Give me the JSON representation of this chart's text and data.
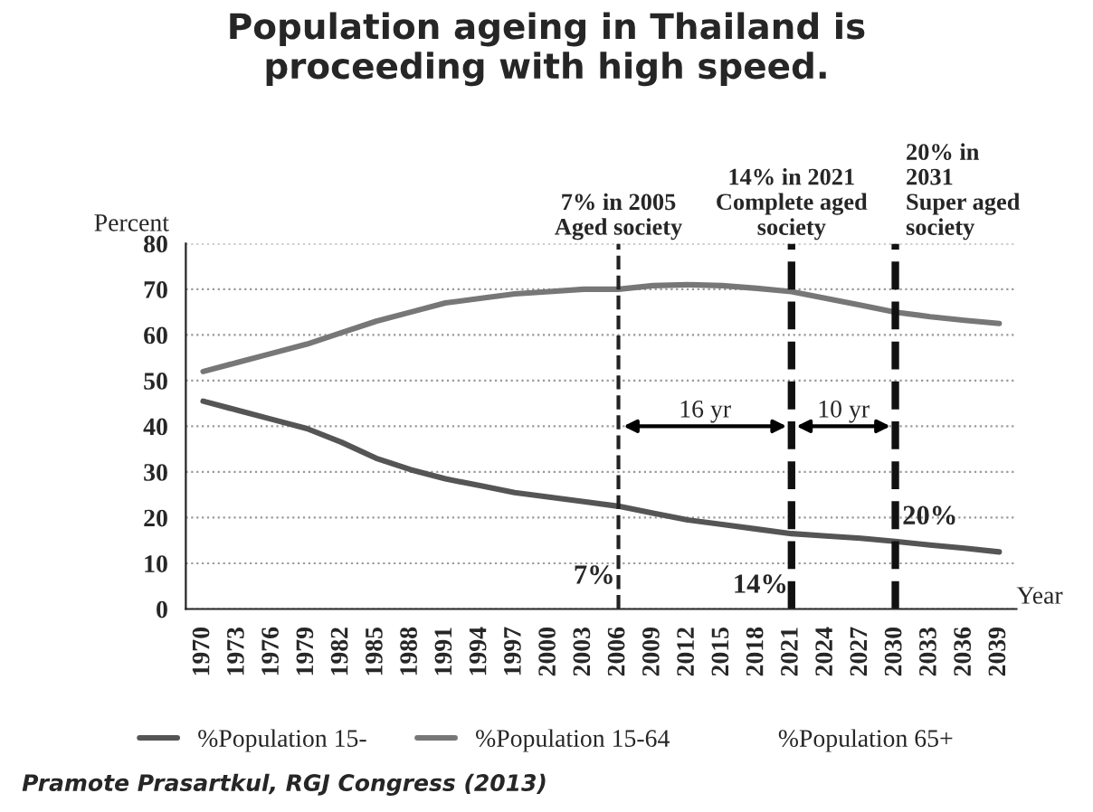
{
  "chart_data": {
    "type": "line",
    "title": "Population ageing in Thailand is\nproceeding with high speed.",
    "xlabel": "Year",
    "ylabel": "Percent",
    "categories": [
      "1970",
      "1973",
      "1976",
      "1979",
      "1982",
      "1985",
      "1988",
      "1991",
      "1994",
      "1997",
      "2000",
      "2003",
      "2006",
      "2009",
      "2012",
      "2015",
      "2018",
      "2021",
      "2024",
      "2027",
      "2030",
      "2033",
      "2036",
      "2039"
    ],
    "series": [
      {
        "name": "%Population 15-",
        "color": "#555555",
        "values": [
          45.5,
          43.5,
          41.5,
          39.5,
          36.5,
          33,
          30.5,
          28.5,
          27,
          25.5,
          24.5,
          23.5,
          22.5,
          21,
          19.5,
          18.5,
          17.5,
          16.5,
          16,
          15.5,
          14.8,
          14,
          13.3,
          12.5
        ]
      },
      {
        "name": "%Population 15-64",
        "color": "#777777",
        "values": [
          52,
          54,
          56,
          58,
          60.5,
          63,
          65,
          67,
          68,
          69,
          69.5,
          70,
          70,
          70.8,
          71,
          70.8,
          70.2,
          69.5,
          68,
          66.5,
          65,
          64,
          63.2,
          62.5
        ]
      },
      {
        "name": "%Population 65+",
        "values": [
          null,
          null,
          null,
          null,
          null,
          null,
          null,
          null,
          null,
          null,
          null,
          null,
          null,
          null,
          null,
          null,
          null,
          null,
          null,
          null,
          null,
          null,
          null,
          null
        ]
      }
    ],
    "ylim": [
      0,
      80
    ],
    "yticks": [
      0,
      10,
      20,
      30,
      40,
      50,
      60,
      70,
      80
    ],
    "grid": "y",
    "legend": "bottom",
    "line_style": "solid",
    "marker": "none",
    "ref_lines": [
      {
        "axis": "x",
        "value": "2006",
        "label": "7% in 2005\nAged society",
        "color": "#222222",
        "line_style": "dashed"
      },
      {
        "axis": "x",
        "value": "2021",
        "label": "14% in 2021\nComplete aged\nsociety",
        "color": "#111111",
        "line_style": "dashed"
      },
      {
        "axis": "x",
        "value": "2030",
        "label": "20% in\n2031\nSuper aged\nsociety",
        "color": "#111111",
        "line_style": "dashed"
      }
    ],
    "annotations": [
      {
        "text": "7%",
        "x": "2006",
        "y": 7
      },
      {
        "text": "14%",
        "x": "2021",
        "y": 5
      },
      {
        "text": "20%",
        "x": "2030",
        "y": 20
      },
      "16 yr",
      "10 yr",
      "Pramote Prasartkul, RGJ Congress (2013)"
    ]
  }
}
